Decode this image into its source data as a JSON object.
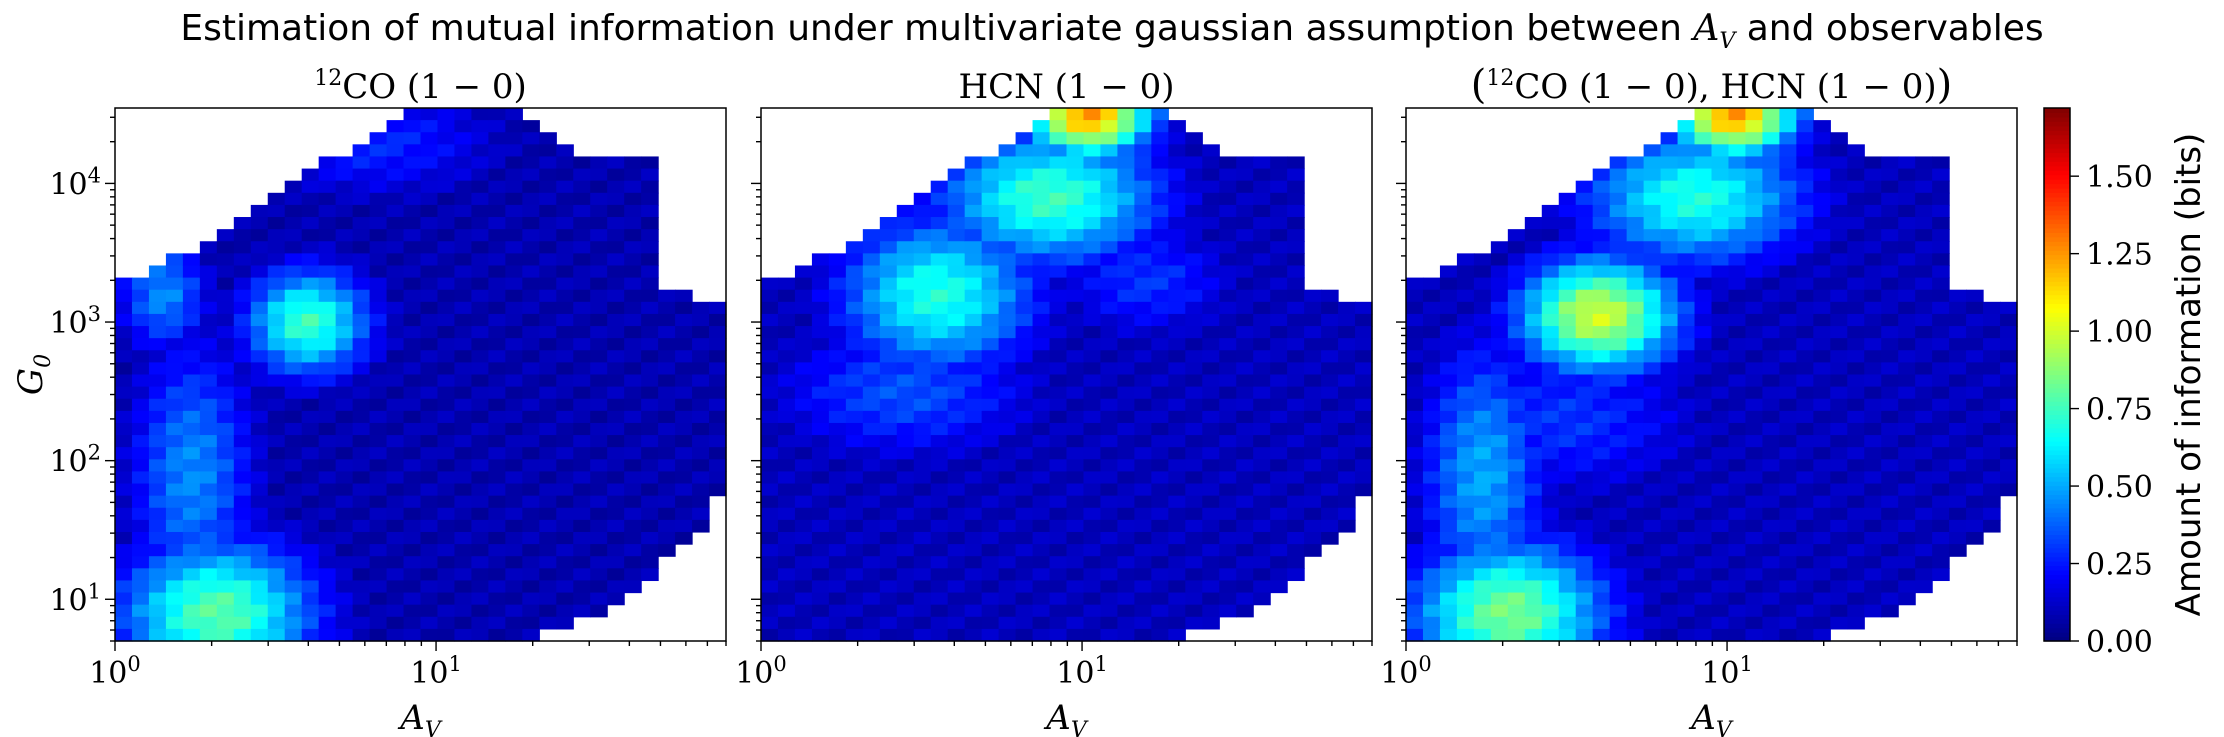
{
  "figure": {
    "title_prefix": "Estimation of mutual information under multivariate gaussian assumption between ",
    "title_var": "A",
    "title_var_sub": "V",
    "title_suffix": " and observables"
  },
  "chart_data": [
    {
      "type": "heatmap",
      "title_sup": "12",
      "title_main": "CO (1 − 0)",
      "xlabel": "A",
      "xlabel_sub": "V",
      "ylabel": "G",
      "ylabel_sub": "0",
      "x_scale": "log",
      "y_scale": "log",
      "xlim": [
        1,
        80
      ],
      "ylim": [
        5,
        35000
      ],
      "x_ticks": [
        {
          "value": 1,
          "base": "10",
          "exp": "0"
        },
        {
          "value": 10,
          "base": "10",
          "exp": "1"
        }
      ],
      "y_ticks": [
        {
          "value": 10,
          "base": "10",
          "exp": "1"
        },
        {
          "value": 100,
          "base": "10",
          "exp": "2"
        },
        {
          "value": 1000,
          "base": "10",
          "exp": "3"
        },
        {
          "value": 10000,
          "base": "10",
          "exp": "4"
        }
      ],
      "hotspots": [
        {
          "logAv": 0.32,
          "logG0": 0.9,
          "value": 0.8,
          "sx": 0.22,
          "sy": 0.38
        },
        {
          "logAv": 0.6,
          "logG0": 3.0,
          "value": 0.75,
          "sx": 0.14,
          "sy": 0.28
        },
        {
          "logAv": 0.24,
          "logG0": 1.9,
          "value": 0.45,
          "sx": 0.14,
          "sy": 0.7
        },
        {
          "logAv": 0.15,
          "logG0": 3.2,
          "value": 0.45,
          "sx": 0.1,
          "sy": 0.3
        },
        {
          "logAv": 0.8,
          "logG0": 4.3,
          "value": 0.28,
          "sx": 0.3,
          "sy": 0.3
        }
      ],
      "baseline": 0.08
    },
    {
      "type": "heatmap",
      "title_sup": "",
      "title_main": "HCN (1 − 0)",
      "xlabel": "A",
      "xlabel_sub": "V",
      "ylabel": "",
      "ylabel_sub": "",
      "x_scale": "log",
      "y_scale": "log",
      "xlim": [
        1,
        80
      ],
      "ylim": [
        5,
        35000
      ],
      "x_ticks": [
        {
          "value": 1,
          "base": "10",
          "exp": "0"
        },
        {
          "value": 10,
          "base": "10",
          "exp": "1"
        }
      ],
      "y_ticks": [
        {
          "value": 10,
          "base": "10",
          "exp": "1"
        },
        {
          "value": 100,
          "base": "10",
          "exp": "2"
        },
        {
          "value": 1000,
          "base": "10",
          "exp": "3"
        },
        {
          "value": 10000,
          "base": "10",
          "exp": "4"
        }
      ],
      "hotspots": [
        {
          "logAv": 1.02,
          "logG0": 4.5,
          "value": 1.25,
          "sx": 0.14,
          "sy": 0.22
        },
        {
          "logAv": 0.9,
          "logG0": 3.9,
          "value": 0.75,
          "sx": 0.25,
          "sy": 0.35
        },
        {
          "logAv": 0.55,
          "logG0": 3.2,
          "value": 0.7,
          "sx": 0.22,
          "sy": 0.4
        },
        {
          "logAv": 0.45,
          "logG0": 2.5,
          "value": 0.35,
          "sx": 0.3,
          "sy": 0.35
        },
        {
          "logAv": 1.2,
          "logG0": 3.3,
          "value": 0.3,
          "sx": 0.2,
          "sy": 0.3
        }
      ],
      "baseline": 0.1
    },
    {
      "type": "heatmap",
      "title_sup": "12",
      "title_main": "CO (1 − 0), HCN (1 − 0)",
      "title_paren": true,
      "xlabel": "A",
      "xlabel_sub": "V",
      "ylabel": "",
      "ylabel_sub": "",
      "x_scale": "log",
      "y_scale": "log",
      "xlim": [
        1,
        80
      ],
      "ylim": [
        5,
        35000
      ],
      "x_ticks": [
        {
          "value": 1,
          "base": "10",
          "exp": "0"
        },
        {
          "value": 10,
          "base": "10",
          "exp": "1"
        }
      ],
      "y_ticks": [
        {
          "value": 10,
          "base": "10",
          "exp": "1"
        },
        {
          "value": 100,
          "base": "10",
          "exp": "2"
        },
        {
          "value": 1000,
          "base": "10",
          "exp": "3"
        },
        {
          "value": 10000,
          "base": "10",
          "exp": "4"
        }
      ],
      "hotspots": [
        {
          "logAv": 1.02,
          "logG0": 4.5,
          "value": 1.25,
          "sx": 0.14,
          "sy": 0.22
        },
        {
          "logAv": 0.6,
          "logG0": 3.05,
          "value": 1.0,
          "sx": 0.18,
          "sy": 0.3
        },
        {
          "logAv": 0.32,
          "logG0": 0.9,
          "value": 0.85,
          "sx": 0.22,
          "sy": 0.38
        },
        {
          "logAv": 0.9,
          "logG0": 3.9,
          "value": 0.7,
          "sx": 0.25,
          "sy": 0.35
        },
        {
          "logAv": 0.24,
          "logG0": 1.9,
          "value": 0.5,
          "sx": 0.14,
          "sy": 0.7
        },
        {
          "logAv": 0.5,
          "logG0": 2.3,
          "value": 0.3,
          "sx": 0.3,
          "sy": 0.4
        }
      ],
      "baseline": 0.1
    }
  ],
  "colorbar": {
    "label": "Amount of information (bits)",
    "vmin": 0.0,
    "vmax": 1.72,
    "ticks": [
      "0.00",
      "0.25",
      "0.50",
      "0.75",
      "1.00",
      "1.25",
      "1.50"
    ],
    "tick_values": [
      0,
      0.25,
      0.5,
      0.75,
      1.0,
      1.25,
      1.5
    ],
    "colormap": "jet"
  }
}
